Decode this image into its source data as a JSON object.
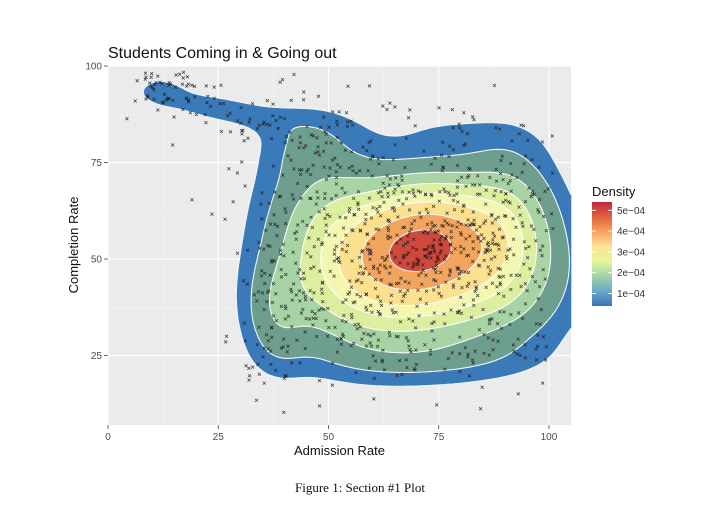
{
  "chart_data": {
    "type": "scatter",
    "subtype": "2d-density-contour",
    "title": "Students Coming in & Going out",
    "xlabel": "Admission Rate",
    "ylabel": "Completion Rate",
    "xlim": [
      0,
      105
    ],
    "ylim": [
      7,
      100
    ],
    "x_ticks": [
      0,
      25,
      50,
      75,
      100
    ],
    "y_ticks": [
      25,
      50,
      75,
      100
    ],
    "grid": true,
    "panel_background": "#ebebeb",
    "legend": {
      "title": "Density",
      "position": "right",
      "type": "colorbar",
      "labels": [
        "5e−04",
        "4e−04",
        "3e−04",
        "2e−04",
        "1e−04"
      ],
      "values": [
        0.0005,
        0.0004,
        0.0003,
        0.0002,
        0.0001
      ],
      "range": [
        4e-05,
        0.00054
      ],
      "colors": [
        "#3b74b3",
        "#6aa8c8",
        "#9ed4a8",
        "#e6f59a",
        "#fde397",
        "#f7a25e",
        "#e0613e",
        "#c0283e"
      ]
    },
    "density_levels": [
      {
        "level": 4e-05,
        "color": "#3b7ab8"
      },
      {
        "level": 8e-05,
        "color": "#6e9f8e"
      },
      {
        "level": 0.00014,
        "color": "#a8d3a4"
      },
      {
        "level": 0.0002,
        "color": "#dcefa0"
      },
      {
        "level": 0.00026,
        "color": "#f4f7b2"
      },
      {
        "level": 0.00032,
        "color": "#fbe08f"
      },
      {
        "level": 0.0004,
        "color": "#f2a55e"
      },
      {
        "level": 0.00048,
        "color": "#d0493c"
      }
    ],
    "point_marker": "x",
    "density_modes": [
      {
        "x": 71,
        "y": 56,
        "sd_x": 13,
        "sd_y": 11,
        "weight": 1.0,
        "corr": 0.15
      },
      {
        "x": 82,
        "y": 45,
        "sd_x": 15,
        "sd_y": 13,
        "weight": 0.55,
        "corr": 0.0
      },
      {
        "x": 58,
        "y": 40,
        "sd_x": 14,
        "sd_y": 12,
        "weight": 0.45,
        "corr": 0.0
      },
      {
        "x": 48,
        "y": 62,
        "sd_x": 10,
        "sd_y": 14,
        "weight": 0.35,
        "corr": 0.0
      },
      {
        "x": 38,
        "y": 35,
        "sd_x": 5,
        "sd_y": 10,
        "weight": 0.22,
        "corr": 0.0
      },
      {
        "x": 92,
        "y": 60,
        "sd_x": 7,
        "sd_y": 14,
        "weight": 0.28,
        "corr": 0.0
      },
      {
        "x": 25,
        "y": 89,
        "sd_x": 12,
        "sd_y": 4,
        "weight": 0.16,
        "corr": -0.6
      },
      {
        "x": 12,
        "y": 94,
        "sd_x": 4,
        "sd_y": 3,
        "weight": 0.1,
        "corr": 0.0
      },
      {
        "x": 45,
        "y": 80,
        "sd_x": 7,
        "sd_y": 6,
        "weight": 0.12,
        "corr": 0.0
      },
      {
        "x": 72,
        "y": 24,
        "sd_x": 18,
        "sd_y": 4,
        "weight": 0.1,
        "corr": 0.0
      },
      {
        "x": 78,
        "y": 84,
        "sd_x": 14,
        "sd_y": 5,
        "weight": 0.07,
        "corr": -0.4
      }
    ]
  },
  "caption": "Figure 1: Section #1 Plot"
}
